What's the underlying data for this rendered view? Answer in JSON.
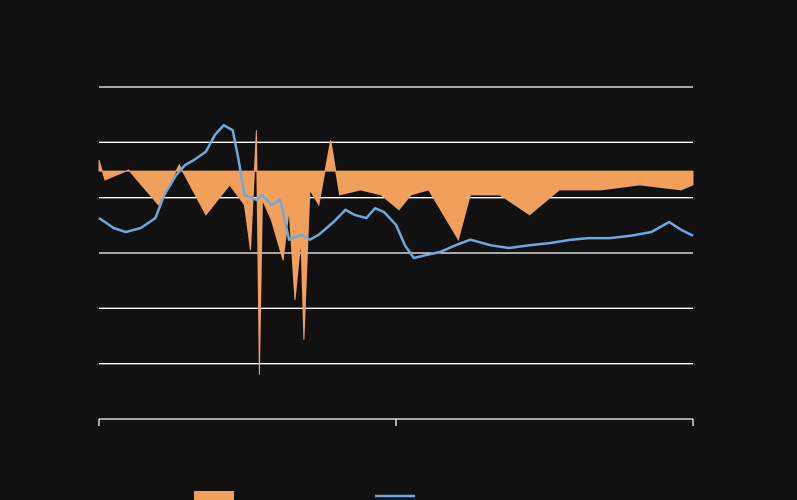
{
  "chart_data": {
    "type": "line",
    "ylim": [
      0,
      6
    ],
    "yticks": [
      0,
      1,
      2,
      3,
      4,
      5,
      6
    ],
    "xlim": [
      0,
      2
    ],
    "xticks": [
      0,
      1,
      2
    ],
    "grid": true,
    "series": [
      {
        "kind": "area",
        "color": "#f0a05a",
        "baseline": 4.48,
        "x": [
          0,
          0.02,
          0.1,
          0.2,
          0.27,
          0.36,
          0.44,
          0.49,
          0.51,
          0.53,
          0.54,
          0.55,
          0.58,
          0.62,
          0.64,
          0.66,
          0.68,
          0.69,
          0.71,
          0.74,
          0.78,
          0.81,
          0.88,
          0.95,
          1.01,
          1.05,
          1.11,
          1.21,
          1.25,
          1.35,
          1.45,
          1.55,
          1.69,
          1.82,
          1.96,
          2.0
        ],
        "values": [
          4.68,
          4.32,
          4.5,
          3.87,
          4.59,
          3.69,
          4.23,
          3.87,
          3.05,
          5.22,
          0.8,
          3.96,
          3.6,
          2.87,
          3.78,
          2.15,
          3.24,
          1.43,
          4.14,
          3.87,
          5.04,
          4.05,
          4.14,
          4.05,
          3.78,
          4.05,
          4.14,
          3.24,
          4.05,
          4.05,
          3.69,
          4.14,
          4.14,
          4.23,
          4.14,
          4.23
        ]
      },
      {
        "kind": "line",
        "color": "#6fa8dc",
        "x": [
          0,
          0.02,
          0.05,
          0.09,
          0.14,
          0.19,
          0.22,
          0.26,
          0.29,
          0.32,
          0.36,
          0.39,
          0.42,
          0.45,
          0.47,
          0.49,
          0.53,
          0.55,
          0.58,
          0.61,
          0.64,
          0.68,
          0.71,
          0.74,
          0.79,
          0.83,
          0.86,
          0.9,
          0.93,
          0.96,
          1.0,
          1.03,
          1.06,
          1.1,
          1.15,
          1.2,
          1.25,
          1.32,
          1.38,
          1.45,
          1.52,
          1.59,
          1.65,
          1.72,
          1.79,
          1.86,
          1.92,
          1.96,
          2.0
        ],
        "values": [
          3.63,
          3.56,
          3.45,
          3.38,
          3.45,
          3.63,
          4.05,
          4.41,
          4.59,
          4.68,
          4.83,
          5.13,
          5.31,
          5.22,
          4.68,
          4.05,
          3.96,
          4.05,
          3.87,
          3.96,
          3.24,
          3.33,
          3.24,
          3.33,
          3.56,
          3.78,
          3.69,
          3.63,
          3.81,
          3.74,
          3.51,
          3.14,
          2.91,
          2.96,
          3.02,
          3.14,
          3.24,
          3.14,
          3.09,
          3.14,
          3.18,
          3.24,
          3.27,
          3.27,
          3.31,
          3.38,
          3.56,
          3.42,
          3.31
        ]
      }
    ]
  }
}
